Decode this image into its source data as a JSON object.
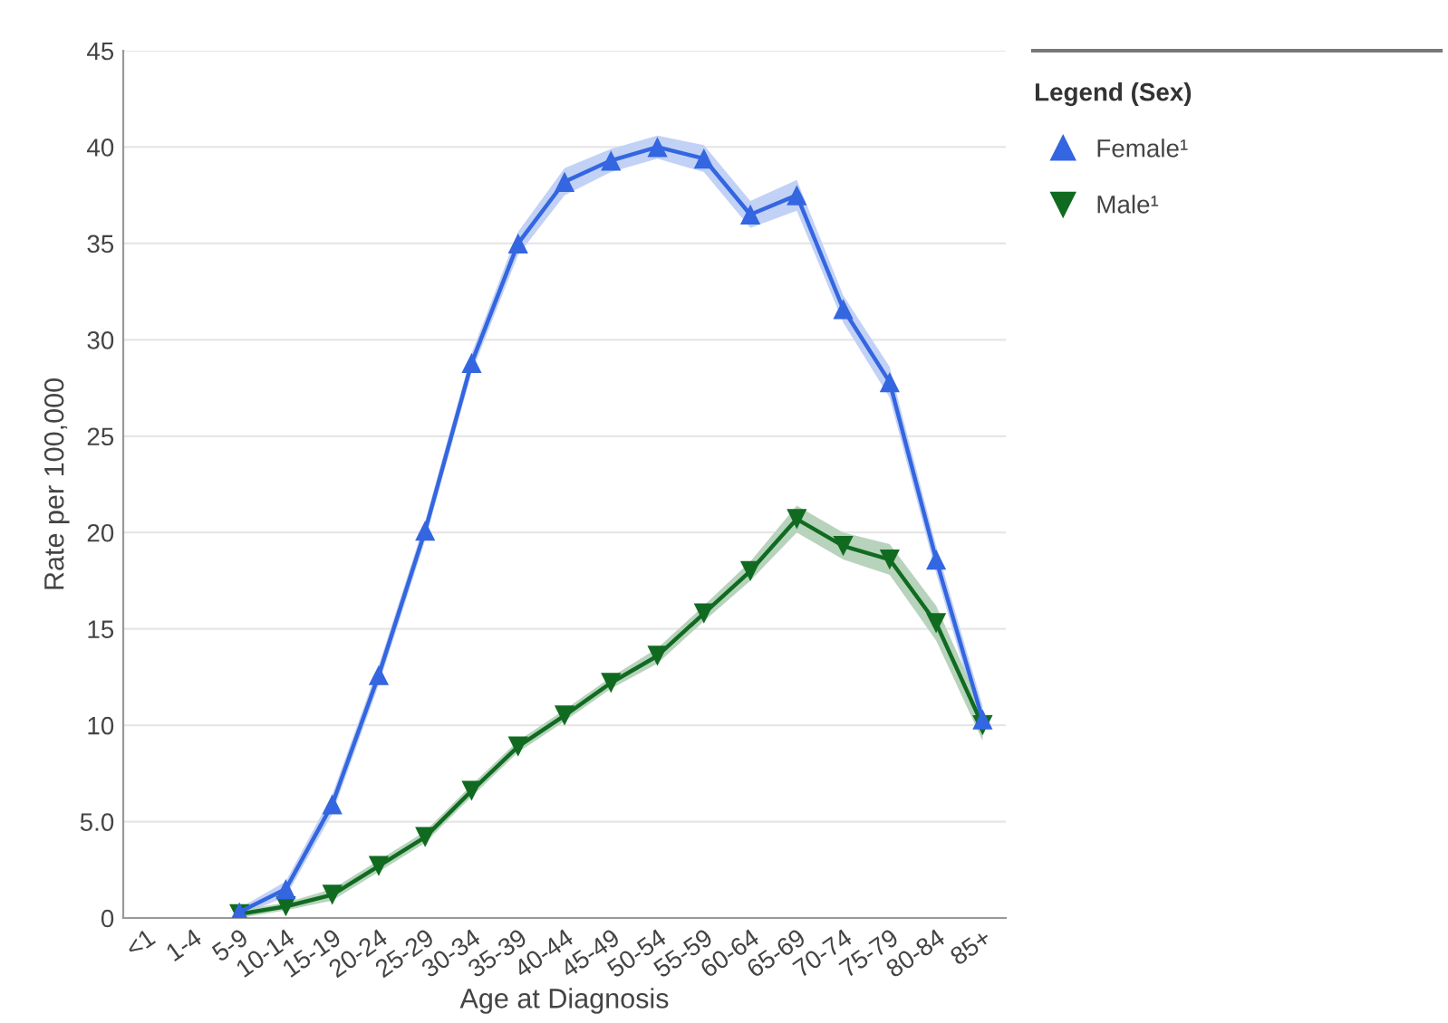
{
  "chart_data": {
    "type": "line",
    "xlabel": "Age at Diagnosis",
    "ylabel": "Rate per 100,000",
    "legend_title": "Legend (Sex)",
    "categories": [
      "<1",
      "1-4",
      "5-9",
      "10-14",
      "15-19",
      "20-24",
      "25-29",
      "30-34",
      "35-39",
      "40-44",
      "45-49",
      "50-54",
      "55-59",
      "60-64",
      "65-69",
      "70-74",
      "75-79",
      "80-84",
      "85+"
    ],
    "series": [
      {
        "name": "Female¹",
        "color": "#3366e0",
        "marker": "triangle",
        "values": [
          null,
          null,
          0.3,
          1.5,
          5.9,
          12.6,
          20.1,
          28.8,
          35.0,
          38.2,
          39.3,
          40.0,
          39.4,
          36.5,
          37.5,
          31.6,
          27.8,
          18.6,
          10.3
        ],
        "lower": [
          null,
          null,
          0.1,
          1.1,
          5.4,
          12.1,
          19.6,
          28.3,
          34.4,
          37.5,
          38.7,
          39.4,
          38.7,
          35.8,
          36.7,
          30.9,
          27.0,
          17.9,
          9.6
        ],
        "upper": [
          null,
          null,
          0.5,
          1.9,
          6.4,
          13.1,
          20.6,
          29.3,
          35.6,
          38.9,
          39.9,
          40.6,
          40.1,
          37.2,
          38.3,
          32.3,
          28.6,
          19.3,
          11.0
        ]
      },
      {
        "name": "Male¹",
        "color": "#106b21",
        "marker": "triangle_down",
        "values": [
          null,
          null,
          0.2,
          0.6,
          1.2,
          2.7,
          4.2,
          6.6,
          8.9,
          10.5,
          12.2,
          13.6,
          15.8,
          18.0,
          20.7,
          19.3,
          18.6,
          15.3,
          10.0
        ],
        "lower": [
          null,
          null,
          0.0,
          0.4,
          0.9,
          2.4,
          3.9,
          6.3,
          8.6,
          10.2,
          11.9,
          13.2,
          15.4,
          17.5,
          20.0,
          18.6,
          17.8,
          14.4,
          9.2
        ],
        "upper": [
          null,
          null,
          0.4,
          0.8,
          1.5,
          3.0,
          4.5,
          6.9,
          9.2,
          10.8,
          12.5,
          14.0,
          16.2,
          18.5,
          21.4,
          20.0,
          19.4,
          16.2,
          10.8
        ]
      }
    ],
    "ylim": [
      0,
      45
    ],
    "yticks": [
      0,
      {
        "value": 5,
        "label": "5.0"
      },
      10,
      15,
      20,
      25,
      30,
      35,
      40,
      45
    ],
    "grid": "y",
    "legend": "top right",
    "line_style": "solid"
  }
}
